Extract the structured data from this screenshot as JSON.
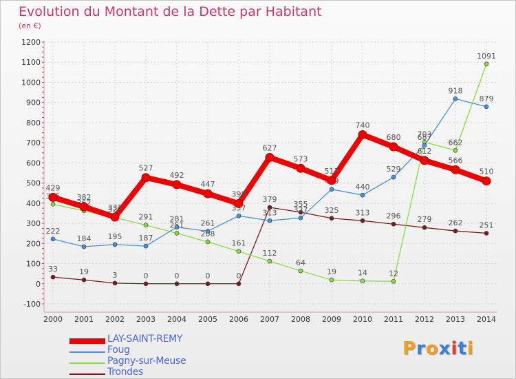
{
  "title": "Evolution du Montant de la Dette par Habitant",
  "unit": "(en €)",
  "logo": {
    "text": "Proxiti",
    "colors": [
      "#f0a020",
      "#3a7fd5",
      "#f0a020",
      "#3a7fd5",
      "#e0402a",
      "#3a7fd5",
      "#f0a020"
    ]
  },
  "chart_data": {
    "type": "line",
    "x": [
      "2000",
      "2001",
      "2002",
      "2003",
      "2004",
      "2005",
      "2006",
      "2007",
      "2008",
      "2009",
      "2010",
      "2011",
      "2012",
      "2013",
      "2014"
    ],
    "ylim": [
      -100,
      1200
    ],
    "yticks": [
      -100,
      0,
      100,
      200,
      300,
      400,
      500,
      600,
      700,
      800,
      900,
      1000,
      1100,
      1200
    ],
    "grid": true,
    "legend_position": "bottom-left",
    "series": [
      {
        "name": "Trondes",
        "color": "#7a1a1a",
        "values": [
          33,
          19,
          3,
          0,
          0,
          0,
          0,
          379,
          355,
          325,
          313,
          296,
          279,
          262,
          251
        ]
      },
      {
        "name": "Pagny-sur-Meuse",
        "color": "#88dd44",
        "values": [
          395,
          362,
          329,
          291,
          251,
          208,
          161,
          112,
          64,
          19,
          14,
          12,
          703,
          662,
          1091
        ]
      },
      {
        "name": "Foug",
        "color": "#4a90d9",
        "values": [
          222,
          184,
          195,
          187,
          281,
          261,
          337,
          313,
          327,
          469,
          440,
          529,
          687,
          918,
          879
        ]
      },
      {
        "name": "LAY-SAINT-REMY",
        "color": "#ee0000",
        "values": [
          429,
          382,
          331,
          527,
          492,
          447,
          398,
          627,
          573,
          513,
          740,
          680,
          612,
          566,
          510
        ]
      }
    ],
    "legend": [
      "LAY-SAINT-REMY",
      "Foug",
      "Pagny-sur-Meuse",
      "Trondes"
    ]
  }
}
